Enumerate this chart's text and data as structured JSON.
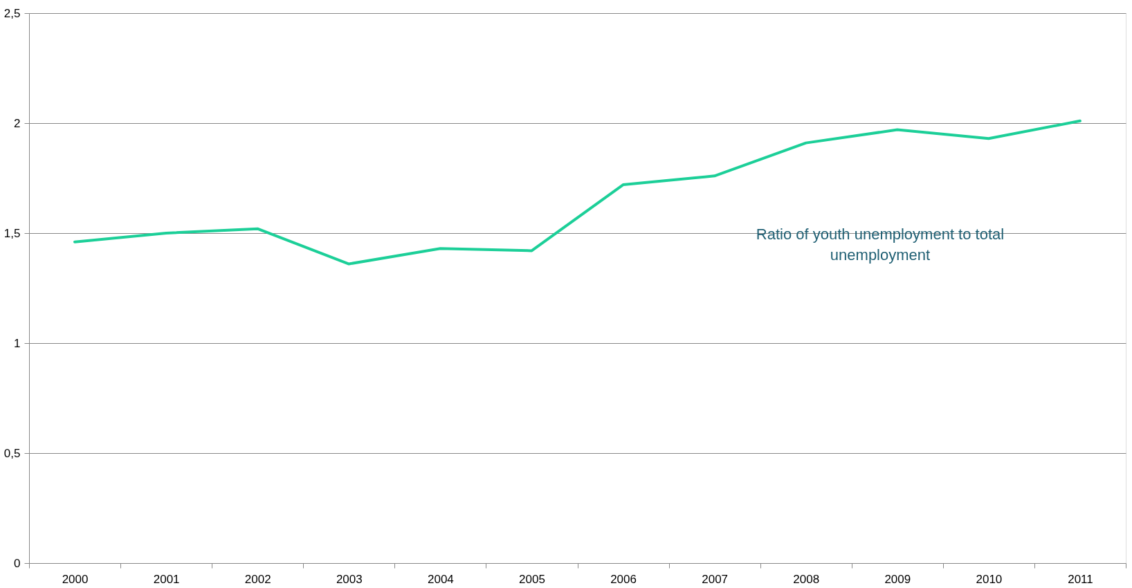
{
  "chart_data": {
    "type": "line",
    "categories": [
      "2000",
      "2001",
      "2002",
      "2003",
      "2004",
      "2005",
      "2006",
      "2007",
      "2008",
      "2009",
      "2010",
      "2011"
    ],
    "series": [
      {
        "name": "Ratio of  youth unemployment to total unemployment",
        "color": "#1ccf98",
        "values": [
          1.46,
          1.5,
          1.52,
          1.36,
          1.43,
          1.42,
          1.72,
          1.76,
          1.91,
          1.97,
          1.93,
          2.01
        ]
      }
    ],
    "ylim": [
      0,
      2.5
    ],
    "yticks": [
      0,
      {
        "value": 0.5,
        "label": "0,5"
      },
      1,
      {
        "value": 1.5,
        "label": "1,5"
      },
      2,
      {
        "value": 2.5,
        "label": "2,5"
      }
    ],
    "grid": "y"
  }
}
